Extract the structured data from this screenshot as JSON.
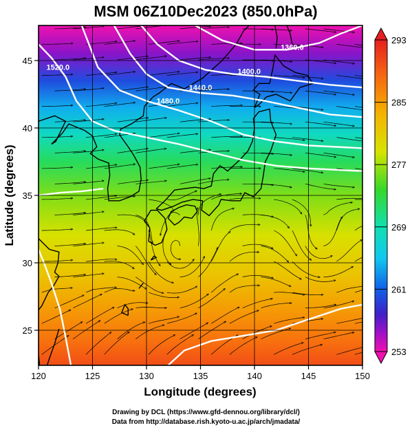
{
  "title": "MSM 06Z10Dec2023 (850.0hPa)",
  "xlabel": "Longitude (degrees)",
  "ylabel": "Latitude  (degrees)",
  "credits": {
    "line1": "Drawing by DCL (https://www.gfd-dennou.org/library/dcl/)",
    "line2": "Data from http://database.rish.kyoto-u.ac.jp/arch/jmadata/"
  },
  "chart_data": {
    "type": "heatmap",
    "xlim": [
      120,
      150
    ],
    "ylim": [
      22.4,
      47.6
    ],
    "x_ticks": [
      "120",
      "125",
      "130",
      "135",
      "140",
      "145",
      "150"
    ],
    "y_ticks": [
      "25",
      "30",
      "35",
      "40",
      "45"
    ],
    "grid": true,
    "colorbar": {
      "min": 253,
      "max": 293,
      "tick_labels": [
        "293",
        "285",
        "277",
        "269",
        "261",
        "253"
      ]
    },
    "temperature_bands": [
      {
        "lat": 47.6,
        "value": 253
      },
      {
        "lat": 45.5,
        "value": 256
      },
      {
        "lat": 43.5,
        "value": 260
      },
      {
        "lat": 41.5,
        "value": 264
      },
      {
        "lat": 39.5,
        "value": 268
      },
      {
        "lat": 37.5,
        "value": 272
      },
      {
        "lat": 35.0,
        "value": 276
      },
      {
        "lat": 32.0,
        "value": 279
      },
      {
        "lat": 29.0,
        "value": 282
      },
      {
        "lat": 26.5,
        "value": 285
      },
      {
        "lat": 24.0,
        "value": 288
      },
      {
        "lat": 22.4,
        "value": 290
      }
    ],
    "height_contours": [
      {
        "label": "1360.0",
        "label_lon": 143.5,
        "label_lat": 45.8,
        "points": [
          [
            134.5,
            47.6
          ],
          [
            137,
            46.5
          ],
          [
            140,
            45.8
          ],
          [
            143,
            45.8
          ],
          [
            146,
            46.3
          ],
          [
            148,
            47.0
          ],
          [
            150,
            47.6
          ]
        ]
      },
      {
        "label": "1400.0",
        "label_lon": 139.5,
        "label_lat": 44.0,
        "points": [
          [
            129.5,
            47.6
          ],
          [
            131,
            46.2
          ],
          [
            133,
            45.0
          ],
          [
            135.5,
            44.3
          ],
          [
            138,
            44.0
          ],
          [
            141,
            43.8
          ],
          [
            144,
            43.5
          ],
          [
            147,
            43.2
          ],
          [
            150,
            43.0
          ]
        ]
      },
      {
        "label": "1440.0",
        "label_lon": 135.0,
        "label_lat": 42.8,
        "points": [
          [
            127,
            47.6
          ],
          [
            128.5,
            45.5
          ],
          [
            130,
            44.0
          ],
          [
            132,
            43.0
          ],
          [
            135,
            42.6
          ],
          [
            138,
            42.4
          ],
          [
            141,
            42.0
          ],
          [
            144,
            41.5
          ],
          [
            147,
            41.0
          ],
          [
            150,
            40.8
          ]
        ]
      },
      {
        "label": "1480.0",
        "label_lon": 132.0,
        "label_lat": 41.8,
        "points": [
          [
            124,
            47.6
          ],
          [
            125.5,
            44.5
          ],
          [
            127.5,
            42.8
          ],
          [
            130,
            42.0
          ],
          [
            133,
            41.3
          ],
          [
            136,
            40.5
          ],
          [
            139,
            39.5
          ],
          [
            142,
            39.0
          ],
          [
            145,
            38.7
          ],
          [
            150,
            38.5
          ]
        ]
      },
      {
        "label": "1520.0",
        "label_lon": 121.8,
        "label_lat": 44.3,
        "points": [
          [
            120,
            46.2
          ],
          [
            121.2,
            45.2
          ],
          [
            122.5,
            43.8
          ],
          [
            123.5,
            42.0
          ],
          [
            125,
            40.5
          ],
          [
            127,
            39.8
          ],
          [
            130,
            39.3
          ],
          [
            133,
            38.8
          ],
          [
            136,
            38.2
          ],
          [
            139,
            37.6
          ],
          [
            142,
            37.2
          ],
          [
            145,
            37.0
          ],
          [
            150,
            36.8
          ]
        ]
      },
      {
        "label": "",
        "label_lon": 0,
        "label_lat": 0,
        "points": [
          [
            120,
            35.0
          ],
          [
            122,
            35.2
          ],
          [
            124,
            35.3
          ],
          [
            126,
            35.5
          ]
        ]
      },
      {
        "label": "",
        "label_lon": 0,
        "label_lat": 0,
        "points": [
          [
            123,
            22.4
          ],
          [
            122.5,
            24.5
          ],
          [
            122,
            26.5
          ],
          [
            121.2,
            28.5
          ],
          [
            120.5,
            30.0
          ],
          [
            120,
            31.0
          ]
        ]
      },
      {
        "label": "",
        "label_lon": 0,
        "label_lat": 0,
        "points": [
          [
            132,
            22.4
          ],
          [
            133.5,
            23.5
          ],
          [
            136,
            24.2
          ],
          [
            139,
            24.6
          ],
          [
            142,
            25.0
          ],
          [
            145,
            25.8
          ],
          [
            148,
            26.6
          ],
          [
            150,
            26.9
          ]
        ]
      }
    ]
  },
  "colors": {
    "frame": "#000000",
    "contour": "#ffffff",
    "streamline": "#000000",
    "coast": "#000000"
  }
}
